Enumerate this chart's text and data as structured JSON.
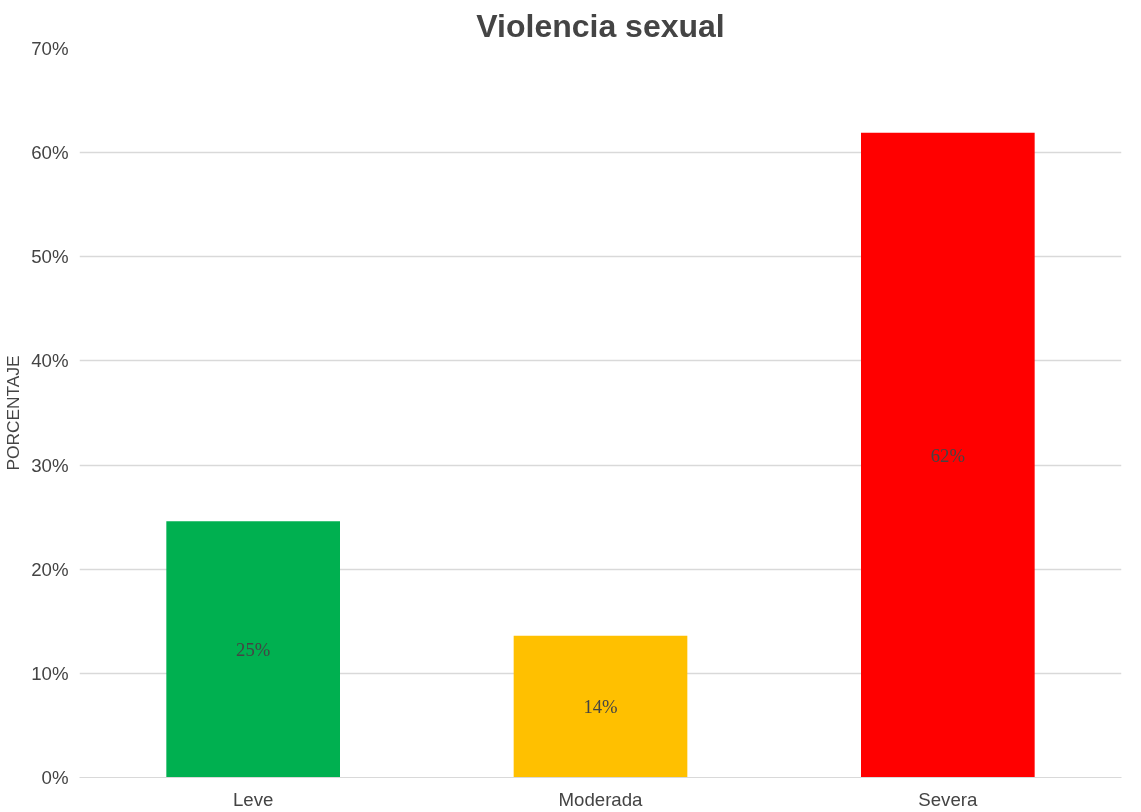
{
  "chart_data": {
    "type": "bar",
    "title": "Violencia sexual",
    "ylabel": "PORCENTAJE",
    "categories": [
      "Leve",
      "Moderada",
      "Severa"
    ],
    "values": [
      24.6,
      13.6,
      61.9
    ],
    "colors": [
      "#00b050",
      "#ffc000",
      "#ff0000"
    ],
    "value_labels": [
      "25%",
      "14%",
      "62%"
    ],
    "ylim": [
      0,
      70
    ],
    "yticks": [
      {
        "value": 0,
        "label": "0%"
      },
      {
        "value": 10,
        "label": "10%"
      },
      {
        "value": 20,
        "label": "20%"
      },
      {
        "value": 30,
        "label": "30%"
      },
      {
        "value": 40,
        "label": "40%"
      },
      {
        "value": 50,
        "label": "50%"
      },
      {
        "value": 60,
        "label": "60%"
      },
      {
        "value": 70,
        "label": "70%"
      }
    ],
    "grid": "y"
  }
}
